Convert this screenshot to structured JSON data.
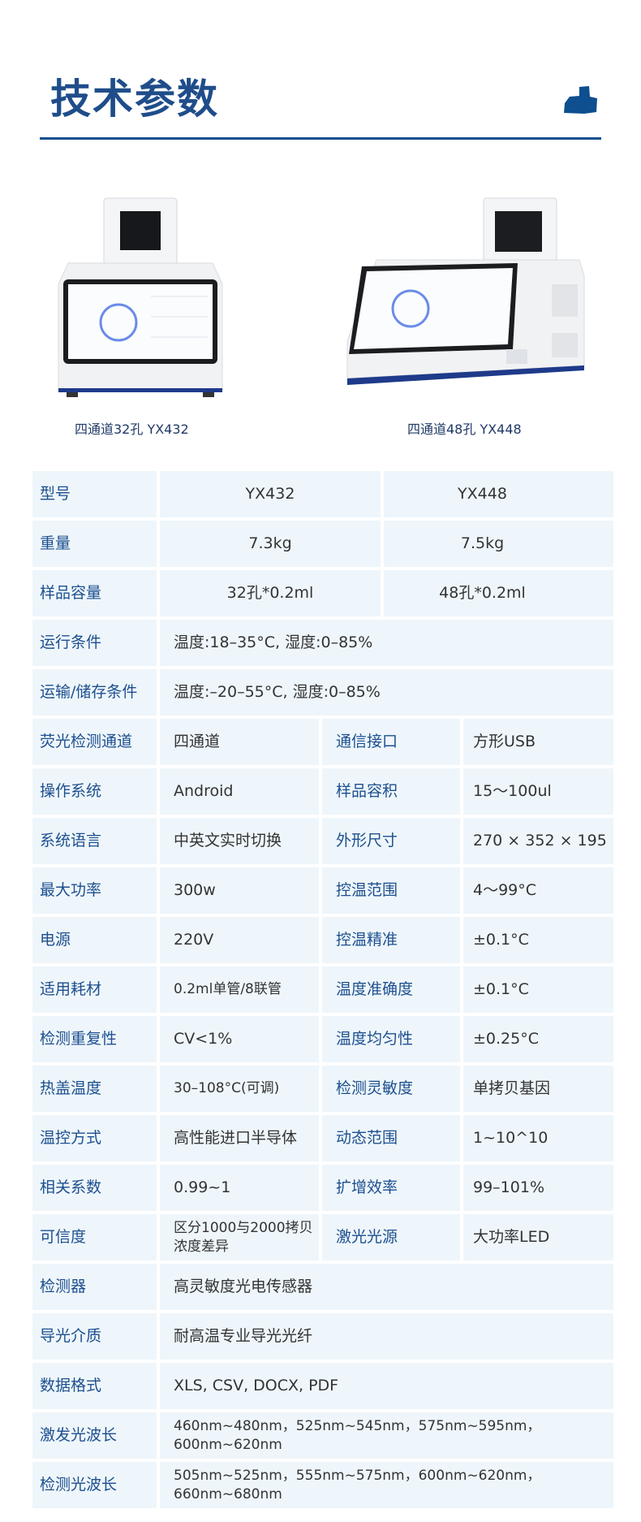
{
  "header": {
    "title": "技术参数",
    "logo_icon": "instrument-logo-icon"
  },
  "products": [
    {
      "caption": "四通道32孔 YX432"
    },
    {
      "caption": "四通道48孔 YX448"
    }
  ],
  "colors": {
    "accent": "#0d4f8f",
    "label": "#1d4f8f",
    "cell_bg": "#eef6fb"
  },
  "specs": {
    "model_rows": [
      {
        "label": "型号",
        "a": "YX432",
        "b": "YX448"
      },
      {
        "label": "重量",
        "a": "7.3kg",
        "b": "7.5kg"
      },
      {
        "label": "样品容量",
        "a": "32孔*0.2ml",
        "b": "48孔*0.2ml"
      }
    ],
    "wide_rows_top": [
      {
        "label": "运行条件",
        "value": "温度:18–35°C, 湿度:0–85%"
      },
      {
        "label": "运输/储存条件",
        "value": "温度:–20–55°C, 湿度:0–85%"
      }
    ],
    "quad_rows": [
      {
        "k1": "荧光检测通道",
        "v1": "四通道",
        "k2": "通信接口",
        "v2": "方形USB"
      },
      {
        "k1": "操作系统",
        "v1": "Android",
        "k2": "样品容积",
        "v2": "15～100ul"
      },
      {
        "k1": "系统语言",
        "v1": "中英文实时切换",
        "k2": "外形尺寸",
        "v2": "270 × 352 × 195"
      },
      {
        "k1": "最大功率",
        "v1": "300w",
        "k2": "控温范围",
        "v2": "4～99°C"
      },
      {
        "k1": "电源",
        "v1": "220V",
        "k2": "控温精准",
        "v2": "±0.1°C"
      },
      {
        "k1": "适用耗材",
        "v1": "0.2ml单管/8联管",
        "k2": "温度准确度",
        "v2": "±0.1°C"
      },
      {
        "k1": "检测重复性",
        "v1": "CV<1%",
        "k2": "温度均匀性",
        "v2": "±0.25°C"
      },
      {
        "k1": "热盖温度",
        "v1": "30–108°C(可调)",
        "k2": "检测灵敏度",
        "v2": "单拷贝基因"
      },
      {
        "k1": "温控方式",
        "v1": "高性能进口半导体",
        "k2": "动态范围",
        "v2": "1~10^10"
      },
      {
        "k1": "相关系数",
        "v1": "0.99~1",
        "k2": "扩增效率",
        "v2": "99–101%"
      },
      {
        "k1": "可信度",
        "v1": "区分1000与2000拷贝浓度差异",
        "k2": "激光光源",
        "v2": "大功率LED"
      }
    ],
    "wide_rows_bottom": [
      {
        "label": "检测器",
        "value": "高灵敏度光电传感器"
      },
      {
        "label": "导光介质",
        "value": "耐高温专业导光光纤"
      },
      {
        "label": "数据格式",
        "value": "XLS, CSV, DOCX, PDF"
      },
      {
        "label": "激发光波长",
        "value": "460nm~480nm，525nm~545nm，575nm~595nm，600nm~620nm"
      },
      {
        "label": "检测光波长",
        "value": "505nm~525nm，555nm~575nm，600nm~620nm，660nm~680nm"
      }
    ]
  }
}
